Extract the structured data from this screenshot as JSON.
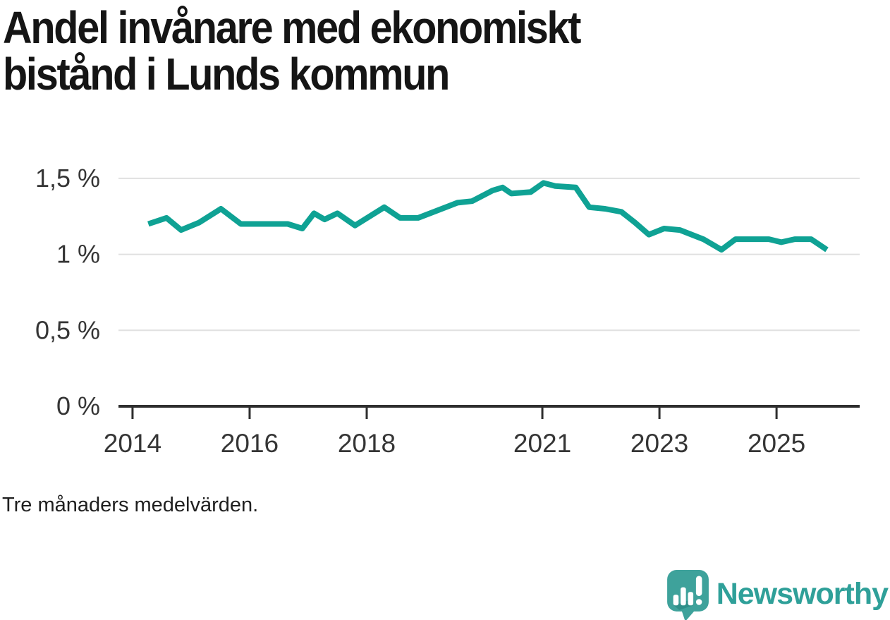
{
  "title": {
    "lines": [
      "Andel invånare med ekonomiskt",
      "bistånd i Lunds kommun"
    ]
  },
  "footnote": "Tre månaders medelvärden.",
  "branding": {
    "name": "Newsworthy",
    "logo_icon": "speech-bubble-bar-chart-icon",
    "mark_color": "#3EA29B",
    "mark_shadow_color": "#2D8C86",
    "text_color": "#2FA099"
  },
  "colors": {
    "line": "#0FA294",
    "grid": "#E0E0E0",
    "axis": "#2E2E2E",
    "tick_text": "#353535",
    "title": "#151515",
    "footnote": "#1F1F1F"
  },
  "chart_data": {
    "type": "line",
    "title": "Andel invånare med ekonomiskt bistånd i Lunds kommun",
    "note": "Tre månaders medelvärden.",
    "unit": "%",
    "grid": true,
    "legend": "none",
    "xlim": [
      2013.76,
      2026.42
    ],
    "ylim": [
      0,
      1.69
    ],
    "y_ticks": [
      {
        "value": 1.5,
        "label": "1,5 %"
      },
      {
        "value": 1.0,
        "label": "1 %"
      },
      {
        "value": 0.5,
        "label": "0,5 %"
      },
      {
        "value": 0.0,
        "label": "0 %"
      }
    ],
    "x_ticks": [
      {
        "value": 2014,
        "label": "2014"
      },
      {
        "value": 2016,
        "label": "2016"
      },
      {
        "value": 2018,
        "label": "2018"
      },
      {
        "value": 2021,
        "label": "2021"
      },
      {
        "value": 2023,
        "label": "2023"
      },
      {
        "value": 2025,
        "label": "2025"
      }
    ],
    "series": [
      {
        "name": "Lunds kommun",
        "points": [
          [
            2014.27,
            1.2
          ],
          [
            2014.58,
            1.24
          ],
          [
            2014.83,
            1.16
          ],
          [
            2015.14,
            1.21
          ],
          [
            2015.51,
            1.3
          ],
          [
            2015.85,
            1.2
          ],
          [
            2016.65,
            1.2
          ],
          [
            2016.9,
            1.17
          ],
          [
            2017.1,
            1.27
          ],
          [
            2017.28,
            1.23
          ],
          [
            2017.5,
            1.27
          ],
          [
            2017.8,
            1.19
          ],
          [
            2018.3,
            1.31
          ],
          [
            2018.57,
            1.24
          ],
          [
            2018.88,
            1.24
          ],
          [
            2019.55,
            1.34
          ],
          [
            2019.8,
            1.35
          ],
          [
            2020.15,
            1.42
          ],
          [
            2020.32,
            1.44
          ],
          [
            2020.47,
            1.4
          ],
          [
            2020.8,
            1.41
          ],
          [
            2021.02,
            1.47
          ],
          [
            2021.22,
            1.45
          ],
          [
            2021.57,
            1.44
          ],
          [
            2021.8,
            1.31
          ],
          [
            2022.07,
            1.3
          ],
          [
            2022.35,
            1.28
          ],
          [
            2022.58,
            1.21
          ],
          [
            2022.82,
            1.13
          ],
          [
            2023.08,
            1.17
          ],
          [
            2023.35,
            1.16
          ],
          [
            2023.75,
            1.1
          ],
          [
            2024.06,
            1.03
          ],
          [
            2024.3,
            1.1
          ],
          [
            2024.87,
            1.1
          ],
          [
            2025.08,
            1.08
          ],
          [
            2025.31,
            1.1
          ],
          [
            2025.59,
            1.1
          ],
          [
            2025.86,
            1.03
          ]
        ]
      }
    ]
  }
}
